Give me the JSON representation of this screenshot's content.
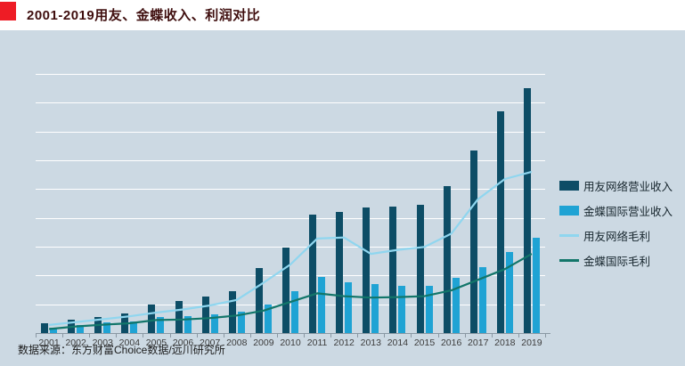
{
  "header": {
    "title": "2001-2019用友、金蝶收入、利润对比",
    "accent_color": "#ee1c25",
    "title_color": "#3f0e0e"
  },
  "source": {
    "text": "数据来源：东方财富Choice数据/远川研究所"
  },
  "colors": {
    "canvas_background": "#ccd9e3",
    "titlebar_background": "#ffffff",
    "gridline": "#ffffff",
    "axis": "#8a98a3",
    "yonyou_revenue_bar": "#0d4d66",
    "kingdee_revenue_bar": "#1fa3d4",
    "yonyou_gross_line": "#8fd6ef",
    "kingdee_gross_line": "#12766a"
  },
  "chart_data": {
    "type": "bar",
    "subtype": "grouped-bars-with-overlaid-lines",
    "title": "2001-2019用友、金蝶收入、利润对比",
    "xlabel": "",
    "ylabel": "",
    "categories": [
      "2001",
      "2002",
      "2003",
      "2004",
      "2005",
      "2006",
      "2007",
      "2008",
      "2009",
      "2010",
      "2011",
      "2012",
      "2013",
      "2014",
      "2015",
      "2016",
      "2017",
      "2018",
      "2019"
    ],
    "ylim": [
      0,
      90
    ],
    "gridline_step": 10,
    "grid": "horizontal white gridlines, no y-axis tick labels",
    "legend_position": "right",
    "series": [
      {
        "name": "用友网络营业收入",
        "type": "bar",
        "color": "#0d4d66",
        "values": [
          3.3,
          4.5,
          5.6,
          6.7,
          9.8,
          11.0,
          12.7,
          14.5,
          22.7,
          29.6,
          41.0,
          42.2,
          43.5,
          43.9,
          44.4,
          50.9,
          63.3,
          77.0,
          85.1
        ]
      },
      {
        "name": "金蝶国际营业收入",
        "type": "bar",
        "color": "#1fa3d4",
        "values": [
          1.9,
          2.9,
          3.6,
          4.1,
          5.7,
          5.9,
          6.5,
          7.5,
          9.8,
          14.5,
          19.6,
          17.5,
          17.0,
          16.3,
          16.5,
          19.1,
          23.0,
          28.1,
          33.2
        ]
      },
      {
        "name": "用友网络毛利",
        "type": "line",
        "color": "#8fd6ef",
        "values": [
          2.8,
          3.8,
          4.8,
          5.8,
          7.1,
          8.2,
          9.6,
          11.5,
          17.5,
          23.8,
          32.8,
          33.2,
          27.5,
          28.9,
          29.9,
          34.5,
          46.5,
          53.5,
          56.0
        ]
      },
      {
        "name": "金蝶国际毛利",
        "type": "line",
        "color": "#12766a",
        "values": [
          1.4,
          2.3,
          2.9,
          3.4,
          4.5,
          4.7,
          5.2,
          6.1,
          7.8,
          10.8,
          13.8,
          12.8,
          12.3,
          12.5,
          12.8,
          14.8,
          18.5,
          22.2,
          27.5
        ]
      }
    ]
  }
}
